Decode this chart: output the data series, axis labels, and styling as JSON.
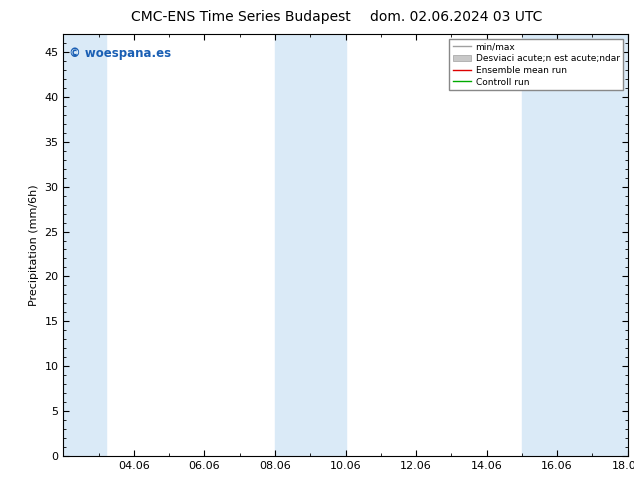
{
  "title_left": "CMC-ENS Time Series Budapest",
  "title_right": "dom. 02.06.2024 03 UTC",
  "ylabel": "Precipitation (mm/6h)",
  "ylim": [
    0,
    47
  ],
  "yticks": [
    0,
    5,
    10,
    15,
    20,
    25,
    30,
    35,
    40,
    45
  ],
  "xlim_start": 0,
  "xlim_end": 16,
  "xtick_labels": [
    "04.06",
    "06.06",
    "08.06",
    "10.06",
    "12.06",
    "14.06",
    "16.06",
    "18.06"
  ],
  "xtick_positions": [
    2,
    4,
    6,
    8,
    10,
    12,
    14,
    16
  ],
  "shaded_bands": [
    {
      "x_start": 0,
      "x_end": 1.2
    },
    {
      "x_start": 6,
      "x_end": 8
    },
    {
      "x_start": 13.0,
      "x_end": 16
    }
  ],
  "band_color": "#daeaf7",
  "background_color": "#ffffff",
  "plot_bg_color": "#ffffff",
  "watermark_text": "© woespana.es",
  "watermark_color": "#1a5fb4",
  "legend_labels": [
    "min/max",
    "Desviaci acute;n est acute;ndar",
    "Ensemble mean run",
    "Controll run"
  ],
  "title_fontsize": 10,
  "axis_fontsize": 8,
  "tick_fontsize": 8
}
